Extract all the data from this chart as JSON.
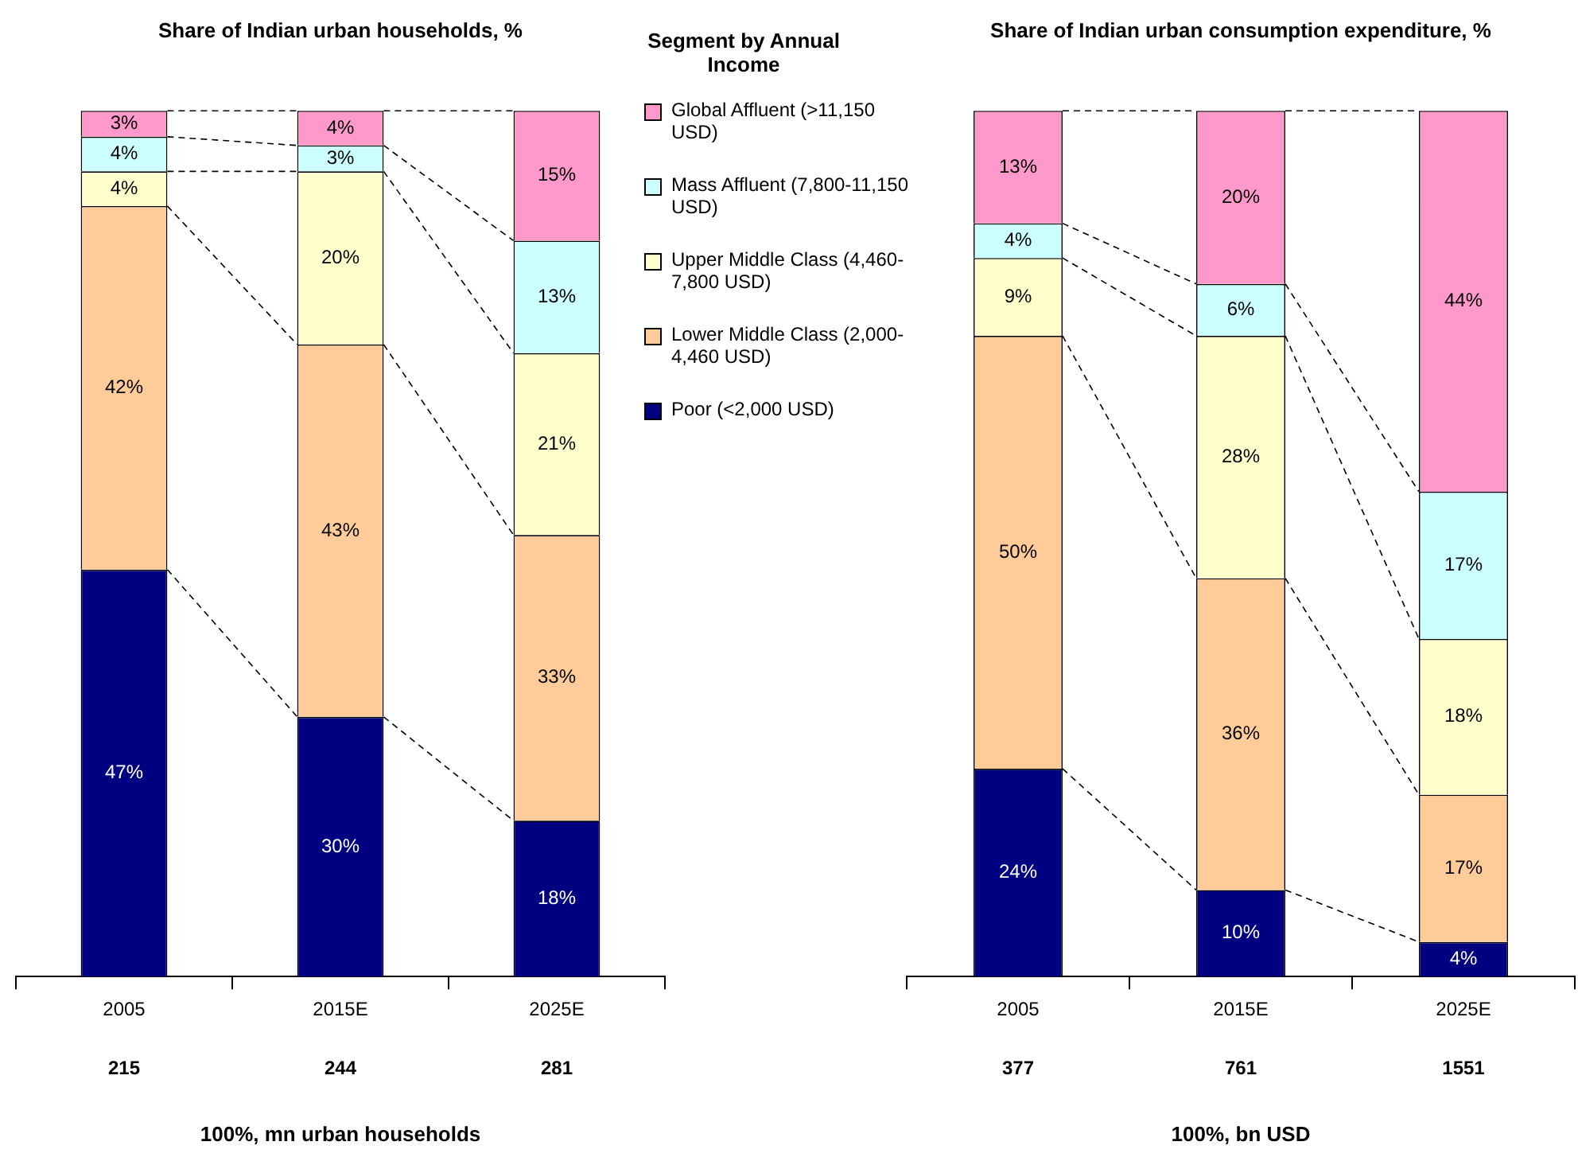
{
  "chart_data": [
    {
      "type": "bar",
      "title": "Share of Indian urban households, %",
      "xlabel": "100%, mn urban households",
      "categories": [
        "2005",
        "2015E",
        "2025E"
      ],
      "stacked": true,
      "ylim": [
        0,
        100
      ],
      "grid": false,
      "tick_labels": "x",
      "legend": "right",
      "legend_title": "Segment by Annual Income",
      "annotations": [
        "215",
        "244",
        "281"
      ],
      "series": [
        {
          "name": "Poor (<2,000 USD)",
          "color": "#000080",
          "values": [
            47,
            30,
            18
          ],
          "value_labels": [
            "47%",
            "30%",
            "18%"
          ]
        },
        {
          "name": "Lower Middle Class (2,000-4,460 USD)",
          "color": "#ffcc99",
          "values": [
            42,
            43,
            33
          ],
          "value_labels": [
            "42%",
            "43%",
            "33%"
          ]
        },
        {
          "name": "Upper Middle Class (4,460-7,800 USD)",
          "color": "#ffffcc",
          "values": [
            4,
            20,
            21
          ],
          "value_labels": [
            "4%",
            "20%",
            "21%"
          ]
        },
        {
          "name": "Mass Affluent (7,800-11,150 USD)",
          "color": "#ccffff",
          "values": [
            4,
            3,
            13
          ],
          "value_labels": [
            "4%",
            "3%",
            "13%"
          ]
        },
        {
          "name": "Global Affluent (>11,150 USD)",
          "color": "#ff99cc",
          "values": [
            3,
            4,
            15
          ],
          "value_labels": [
            "3%",
            "4%",
            "15%"
          ]
        }
      ]
    },
    {
      "type": "bar",
      "title": "Share of Indian urban consumption expenditure, %",
      "xlabel": "100%, bn USD",
      "categories": [
        "2005",
        "2015E",
        "2025E"
      ],
      "stacked": true,
      "ylim": [
        0,
        100
      ],
      "grid": false,
      "tick_labels": "x",
      "annotations": [
        "377",
        "761",
        "1551"
      ],
      "series": [
        {
          "color": "#000080",
          "values": [
            24,
            10,
            4
          ],
          "value_labels": [
            "24%",
            "10%",
            "4%"
          ]
        },
        {
          "color": "#ffcc99",
          "values": [
            50,
            36,
            17
          ],
          "value_labels": [
            "50%",
            "36%",
            "17%"
          ]
        },
        {
          "color": "#ffffcc",
          "values": [
            9,
            28,
            18
          ],
          "value_labels": [
            "9%",
            "28%",
            "18%"
          ]
        },
        {
          "color": "#ccffff",
          "values": [
            4,
            6,
            17
          ],
          "value_labels": [
            "4%",
            "6%",
            "17%"
          ]
        },
        {
          "color": "#ff99cc",
          "values": [
            13,
            20,
            44
          ],
          "value_labels": [
            "13%",
            "20%",
            "44%"
          ]
        }
      ]
    }
  ]
}
